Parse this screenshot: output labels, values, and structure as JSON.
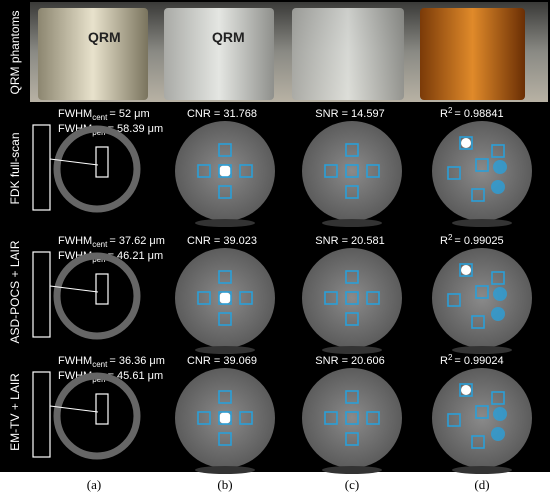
{
  "columns": [
    "(a)",
    "(b)",
    "(c)",
    "(d)"
  ],
  "photo_labels": [
    "QRM",
    "QRM"
  ],
  "rows": [
    {
      "label": "QRM phantoms"
    },
    {
      "label": "FDK full-scan",
      "fwhm_cent": {
        "name": "FWHM",
        "sub": "cent",
        "value": "= 52 μm"
      },
      "fwhm_peri": {
        "name": "FWHM",
        "sub": "peri",
        "value": "= 58.39 μm"
      },
      "cnr": "CNR = 31.768",
      "snr": "SNR = 14.597",
      "r2": {
        "name": "R",
        "sup": "2",
        "value": "= 0.98841"
      }
    },
    {
      "label": "ASD-POCS + LAIR",
      "fwhm_cent": {
        "name": "FWHM",
        "sub": "cent",
        "value": "= 37.62 μm"
      },
      "fwhm_peri": {
        "name": "FWHM",
        "sub": "peri",
        "value": "= 46.21 μm"
      },
      "cnr": "CNR = 39.023",
      "snr": "SNR = 20.581",
      "r2": {
        "name": "R",
        "sup": "2",
        "value": "= 0.99025"
      }
    },
    {
      "label": "EM-TV + LAIR",
      "fwhm_cent": {
        "name": "FWHM",
        "sub": "cent",
        "value": "= 36.36 μm"
      },
      "fwhm_peri": {
        "name": "FWHM",
        "sub": "peri",
        "value": "= 45.61 μm"
      },
      "cnr": "CNR = 39.069",
      "snr": "SNR = 20.606",
      "r2": {
        "name": "R",
        "sup": "2",
        "value": "= 0.99024"
      }
    }
  ]
}
